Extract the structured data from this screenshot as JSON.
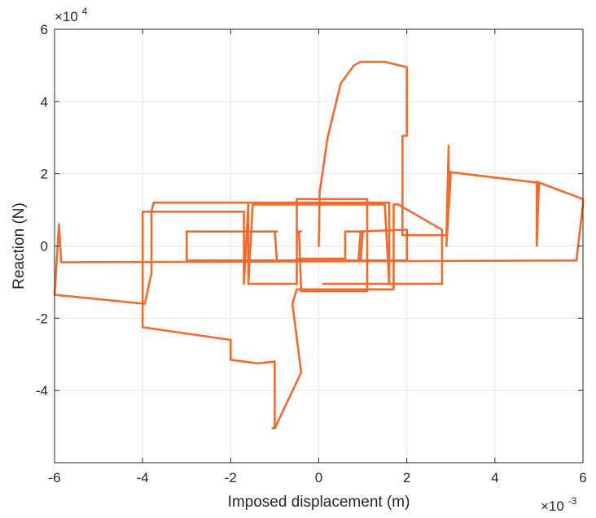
{
  "chart_data": {
    "type": "line",
    "title": "",
    "xlabel": "Imposed displacement (m)",
    "ylabel": "Reaction (N)",
    "x_multiplier": {
      "base": "×10",
      "exponent": "-3"
    },
    "y_multiplier": {
      "base": "×10",
      "exponent": "4"
    },
    "xlim": [
      -6,
      6
    ],
    "ylim": [
      -6,
      6
    ],
    "x_ticks": [
      "-6",
      "-4",
      "-2",
      "0",
      "2",
      "4",
      "6"
    ],
    "y_ticks": [
      "6",
      "4",
      "2",
      "0",
      "-2",
      "-4"
    ],
    "grid": true,
    "line_color": "#f26b2e",
    "series": [
      {
        "x": [
          0.0,
          0.02,
          0.2,
          0.5,
          0.8,
          0.95,
          1.5,
          2.0,
          2.0,
          1.9,
          1.9,
          2.9,
          2.95,
          2.95,
          3.0,
          2.9,
          2.95,
          5.0,
          4.95,
          4.95,
          6.0,
          6.0,
          5.85,
          -5.85,
          -5.9,
          -6.0,
          -3.95,
          -3.8,
          -3.8,
          -1.7,
          -1.7,
          -1.6,
          1.6,
          1.6,
          1.5,
          -1.5,
          -1.6,
          -0.5,
          -0.5,
          1.1,
          1.1,
          0.5,
          -0.4,
          -0.45,
          -0.4,
          -0.5,
          -0.5,
          0.5,
          0.6,
          0.6,
          1.0,
          1.0,
          0.95,
          -0.95,
          -1.0,
          -0.95,
          -3.0,
          -3.0,
          -2.9,
          2.0,
          2.0,
          1.9,
          1.9,
          0.95,
          0.9,
          -0.5,
          -0.5,
          -1.5,
          -1.6,
          -1.6,
          -1.7,
          -2.8,
          -3.75,
          -3.8,
          -4.0,
          -4.0,
          -2.0,
          -2.0,
          -1.7,
          -1.4,
          -1.0,
          -1.0,
          -1.05,
          -1.0,
          -0.4,
          -0.6,
          -0.5,
          0.0,
          0.4,
          0.5,
          1.0,
          1.7,
          1.7,
          1.8,
          2.8,
          2.8,
          2.75,
          0.1
        ],
        "y": [
          0.0,
          1.5,
          3.0,
          4.5,
          5.0,
          5.1,
          5.1,
          4.95,
          3.05,
          3.05,
          0.3,
          0.3,
          2.78,
          2.05,
          2.05,
          0.0,
          2.05,
          1.75,
          0.0,
          1.78,
          1.3,
          1.15,
          -0.4,
          -0.45,
          0.6,
          -1.35,
          -1.6,
          -0.75,
          0.95,
          0.95,
          -1.05,
          1.2,
          1.2,
          -1.05,
          1.15,
          1.15,
          -1.05,
          -1.05,
          1.3,
          1.3,
          -1.25,
          -1.25,
          -1.25,
          0.4,
          0.4,
          0.4,
          -0.35,
          -0.35,
          -0.35,
          0.4,
          0.4,
          0.4,
          -0.4,
          -0.4,
          0.4,
          0.4,
          0.4,
          -0.4,
          -0.4,
          -0.4,
          0.45,
          0.45,
          0.45,
          0.4,
          -0.4,
          -0.4,
          -1.05,
          -1.05,
          -1.05,
          1.2,
          1.2,
          1.2,
          1.2,
          0.95,
          0.95,
          -2.25,
          -2.6,
          -3.15,
          -3.2,
          -3.25,
          -3.2,
          -5.0,
          -5.05,
          -5.05,
          -3.5,
          -1.6,
          -1.2,
          -1.2,
          -1.2,
          -1.2,
          -1.2,
          -1.2,
          1.15,
          1.15,
          0.45,
          -1.05,
          -1.05,
          -1.05
        ]
      }
    ]
  }
}
